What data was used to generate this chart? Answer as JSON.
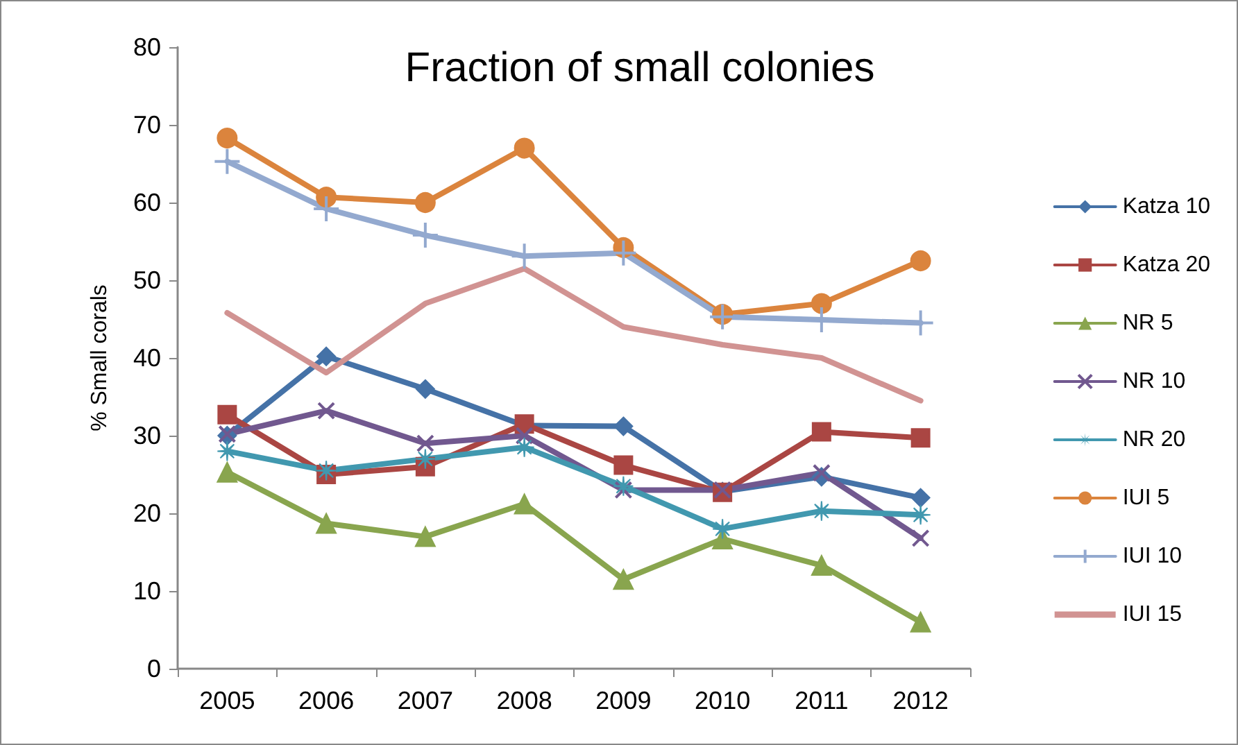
{
  "chart_data": {
    "type": "line",
    "title": "Fraction of small colonies",
    "ylabel": "% Small corals",
    "categories": [
      "2005",
      "2006",
      "2007",
      "2008",
      "2009",
      "2010",
      "2011",
      "2012"
    ],
    "series": [
      {
        "name": "Katza 10",
        "color": "#4572a7",
        "marker": "diamond",
        "values": [
          30,
          40.2,
          36,
          31.3,
          31.2,
          22.8,
          24.7,
          22
        ]
      },
      {
        "name": "Katza 20",
        "color": "#aa4643",
        "marker": "square",
        "values": [
          32.7,
          25,
          26,
          31.5,
          26.2,
          22.7,
          30.5,
          29.7
        ]
      },
      {
        "name": "NR 5",
        "color": "#89a54e",
        "marker": "triangle",
        "values": [
          25.3,
          18.7,
          17,
          21.2,
          11.5,
          16.7,
          13.3,
          6
        ]
      },
      {
        "name": "NR 10",
        "color": "#71588f",
        "marker": "cross",
        "values": [
          30.2,
          33.2,
          29,
          30,
          23,
          23,
          25.2,
          16.8
        ]
      },
      {
        "name": "NR 20",
        "color": "#4198af",
        "marker": "star",
        "values": [
          28,
          25.5,
          27,
          28.5,
          23.5,
          18,
          20.3,
          19.8
        ]
      },
      {
        "name": "IUI 5",
        "color": "#db843d",
        "marker": "circle",
        "values": [
          68.3,
          60.7,
          60,
          67,
          54.2,
          45.6,
          47,
          52.5
        ]
      },
      {
        "name": "IUI 10",
        "color": "#93a9cf",
        "marker": "plus",
        "values": [
          65.3,
          59.2,
          55.8,
          53.1,
          53.5,
          45.3,
          44.9,
          44.5
        ]
      },
      {
        "name": "IUI 15",
        "color": "#d19392",
        "marker": "none",
        "values": [
          45.8,
          38.1,
          47,
          51.5,
          44,
          41.7,
          40,
          34.5
        ]
      }
    ],
    "ylim": [
      0,
      80
    ],
    "yticks": [
      0,
      10,
      20,
      30,
      40,
      50,
      60,
      70,
      80
    ],
    "grid": false,
    "legend": "right"
  }
}
